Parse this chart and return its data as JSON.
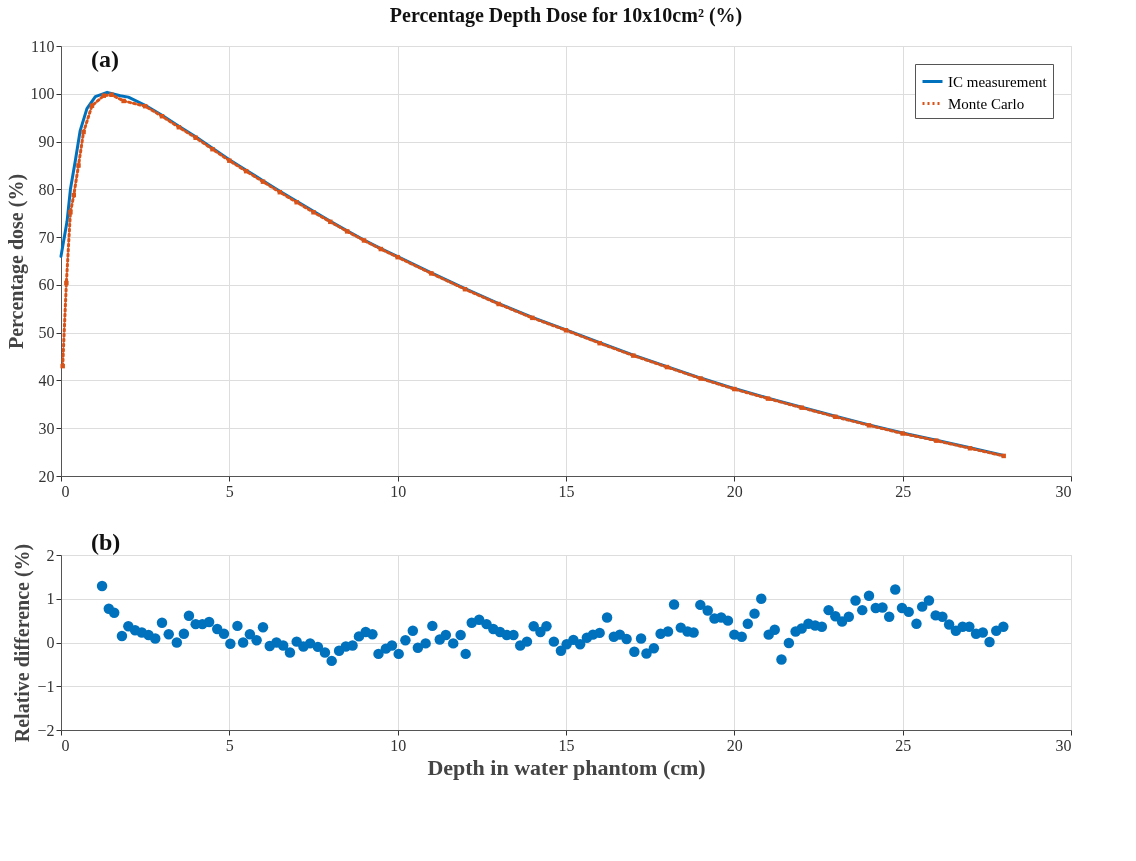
{
  "chart_data": [
    {
      "type": "line",
      "title": "Percentage Depth Dose for 10x10cm² (%)",
      "ylabel": "Percentage dose (%)",
      "annotations": [
        "(a)"
      ],
      "xlim": [
        0,
        30
      ],
      "xticks": [
        0,
        5,
        10,
        15,
        20,
        25,
        30
      ],
      "ylim": [
        20,
        110
      ],
      "yticks": [
        20,
        30,
        40,
        50,
        60,
        70,
        80,
        90,
        100,
        110
      ],
      "grid": true,
      "legend": "top right",
      "series": [
        {
          "name": "IC measurement",
          "color": "#0072bd",
          "marker": "none",
          "line_style": "solid",
          "x": [
            0,
            0.18,
            0.28,
            0.43,
            0.57,
            0.77,
            1.02,
            1.37,
            1.76,
            2,
            2.5,
            3,
            3.5,
            4,
            4.5,
            5,
            5.5,
            6,
            6.5,
            7,
            7.5,
            8,
            8.5,
            9,
            9.5,
            10,
            11,
            12,
            13,
            14,
            15,
            16,
            17,
            18,
            19,
            20,
            21,
            22,
            23,
            24,
            25,
            26,
            27,
            28
          ],
          "values": [
            66,
            73.3,
            80,
            86.2,
            92.3,
            96.9,
            99.4,
            100.3,
            99.6,
            99.3,
            97.6,
            95.5,
            93.2,
            91,
            88.6,
            86.2,
            84,
            81.8,
            79.6,
            77.5,
            75.4,
            73.3,
            71.3,
            69.4,
            67.6,
            65.9,
            62.5,
            59.2,
            56.1,
            53.2,
            50.6,
            47.9,
            45.3,
            42.9,
            40.5,
            38.3,
            36.3,
            34.4,
            32.5,
            30.7,
            29,
            27.5,
            25.9,
            24.3
          ]
        },
        {
          "name": "Monte Carlo",
          "color": "#d95319",
          "marker": "square",
          "line_style": "dotted",
          "x": [
            0.05,
            0.16,
            0.28,
            0.38,
            0.52,
            0.67,
            0.92,
            1.27,
            1.5,
            1.86,
            2.5,
            3,
            3.5,
            4,
            4.5,
            5,
            5.5,
            6,
            6.5,
            7,
            7.5,
            8,
            8.5,
            9,
            9.5,
            10,
            11,
            12,
            13,
            14,
            15,
            16,
            17,
            18,
            19,
            20,
            21,
            22,
            23,
            24,
            25,
            26,
            27,
            28
          ],
          "values": [
            43,
            60.4,
            75.2,
            78.8,
            85,
            92,
            97.5,
            99.6,
            99.8,
            98.5,
            97.4,
            95.3,
            93,
            90.8,
            88.4,
            86,
            83.8,
            81.6,
            79.4,
            77.3,
            75.2,
            73.2,
            71.2,
            69.3,
            67.5,
            65.8,
            62.4,
            59.1,
            56,
            53.1,
            50.5,
            47.8,
            45.2,
            42.8,
            40.4,
            38.2,
            36.2,
            34.3,
            32.4,
            30.6,
            28.9,
            27.4,
            25.8,
            24.2
          ]
        }
      ]
    },
    {
      "type": "scatter",
      "xlabel": "Depth in water phantom (cm)",
      "ylabel": "Relative difference (%)",
      "annotations": [
        "(b)"
      ],
      "xlim": [
        0,
        30
      ],
      "xticks": [
        0,
        5,
        10,
        15,
        20,
        25,
        30
      ],
      "ylim": [
        -2,
        2
      ],
      "yticks": [
        -2,
        -1,
        0,
        1,
        2
      ],
      "grid": true,
      "marker": "circle",
      "series": [
        {
          "color": "#0072bd",
          "x": [
            1.22,
            1.42,
            1.58,
            1.81,
            2.0,
            2.2,
            2.4,
            2.6,
            2.8,
            3.0,
            3.2,
            3.44,
            3.65,
            3.8,
            4.0,
            4.2,
            4.4,
            4.64,
            4.84,
            5.03,
            5.24,
            5.41,
            5.61,
            5.81,
            6.0,
            6.2,
            6.4,
            6.6,
            6.8,
            7.0,
            7.2,
            7.4,
            7.63,
            7.84,
            8.04,
            8.26,
            8.46,
            8.66,
            8.85,
            9.05,
            9.25,
            9.43,
            9.65,
            9.83,
            10.03,
            10.23,
            10.45,
            10.6,
            10.83,
            11.03,
            11.25,
            11.43,
            11.65,
            11.87,
            12.02,
            12.2,
            12.42,
            12.64,
            12.84,
            13.04,
            13.24,
            13.44,
            13.64,
            13.84,
            14.04,
            14.24,
            14.42,
            14.64,
            14.85,
            15.02,
            15.22,
            15.42,
            15.62,
            15.8,
            16.0,
            16.22,
            16.42,
            16.6,
            16.8,
            17.03,
            17.23,
            17.39,
            17.61,
            17.81,
            18.03,
            18.21,
            18.41,
            18.61,
            18.79,
            18.99,
            19.21,
            19.41,
            19.61,
            19.81,
            20.0,
            20.22,
            20.4,
            20.6,
            20.8,
            21.02,
            21.2,
            21.4,
            21.62,
            21.82,
            22.0,
            22.2,
            22.4,
            22.6,
            22.8,
            23.0,
            23.2,
            23.4,
            23.6,
            23.8,
            24.0,
            24.2,
            24.4,
            24.6,
            24.78,
            24.98,
            25.18,
            25.41,
            25.58,
            25.78,
            25.98,
            26.18,
            26.38,
            26.58,
            26.78,
            26.98,
            27.18,
            27.38,
            27.58,
            27.78,
            27.99
          ],
          "values": [
            1.29,
            0.77,
            0.68,
            0.15,
            0.37,
            0.28,
            0.23,
            0.17,
            0.09,
            0.45,
            0.19,
            0,
            0.2,
            0.61,
            0.42,
            0.42,
            0.47,
            0.31,
            0.2,
            -0.03,
            0.38,
            0,
            0.19,
            0.05,
            0.35,
            -0.08,
            0,
            -0.07,
            -0.23,
            0.02,
            -0.09,
            -0.02,
            -0.1,
            -0.23,
            -0.42,
            -0.19,
            -0.09,
            -0.07,
            0.14,
            0.24,
            0.19,
            -0.26,
            -0.14,
            -0.07,
            -0.26,
            0.05,
            0.27,
            -0.12,
            -0.02,
            0.38,
            0.07,
            0.17,
            -0.02,
            0.17,
            -0.26,
            0.45,
            0.52,
            0.42,
            0.31,
            0.24,
            0.17,
            0.17,
            -0.07,
            0.02,
            0.37,
            0.24,
            0.37,
            0.02,
            -0.19,
            -0.04,
            0.06,
            -0.04,
            0.11,
            0.18,
            0.22,
            0.57,
            0.13,
            0.18,
            0.08,
            -0.21,
            0.09,
            -0.25,
            -0.13,
            0.2,
            0.25,
            0.87,
            0.34,
            0.25,
            0.23,
            0.86,
            0.73,
            0.55,
            0.57,
            0.5,
            0.18,
            0.13,
            0.43,
            0.66,
            1.0,
            0.18,
            0.29,
            -0.39,
            -0.01,
            0.25,
            0.32,
            0.43,
            0.39,
            0.36,
            0.74,
            0.6,
            0.48,
            0.59,
            0.96,
            0.74,
            1.07,
            0.79,
            0.8,
            0.59,
            1.21,
            0.79,
            0.7,
            0.43,
            0.82,
            0.96,
            0.62,
            0.59,
            0.41,
            0.27,
            0.36,
            0.36,
            0.2,
            0.23,
            0.01,
            0.27,
            0.36
          ]
        }
      ]
    }
  ]
}
